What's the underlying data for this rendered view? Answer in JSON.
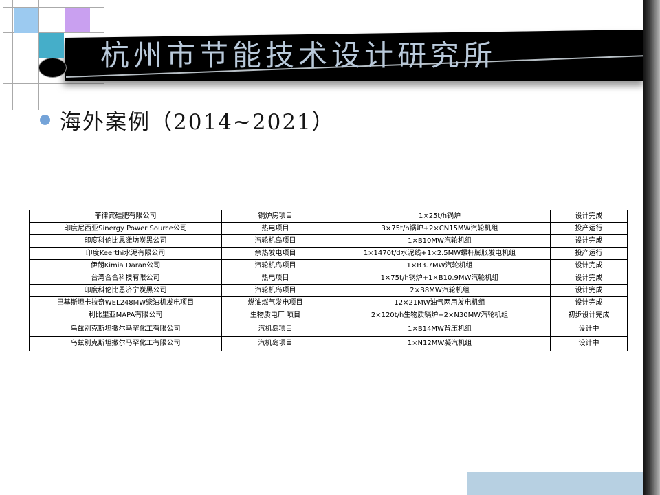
{
  "slide": {
    "title": "杭州市节能技术设计研究所",
    "bullet": "海外案例（2014~2021）"
  },
  "table": {
    "column_keys": [
      "company",
      "project",
      "equipment",
      "status"
    ],
    "rows": [
      {
        "company": "菲律宾硅肥有限公司",
        "project": "锅炉房项目",
        "equipment": "1×25t/h锅炉",
        "status": "设计完成"
      },
      {
        "company": "印度尼西亚Sinergy Power Source公司",
        "project": "热电项目",
        "equipment": "3×75t/h锅炉+2×CN15MW汽轮机组",
        "status": "投产运行"
      },
      {
        "company": "印度科伦比恩潍坊炭黑公司",
        "project": "汽轮机岛项目",
        "equipment": "1×B10MW汽轮机组",
        "status": "设计完成"
      },
      {
        "company": "印度Keerthi水泥有限公司",
        "project": "余热发电项目",
        "equipment": "1×1470t/d水泥线+1×2.5MW螺杆膨胀发电机组",
        "status": "投产运行"
      },
      {
        "company": "伊朗Kimia Daran公司",
        "project": "汽轮机岛项目",
        "equipment": "1×B3.7MW汽轮机组",
        "status": "设计完成"
      },
      {
        "company": "台湾合合科技有限公司",
        "project": "热电项目",
        "equipment": "1×75t/h锅炉+1×B10.9MW汽轮机组",
        "status": "设计完成"
      },
      {
        "company": "印度科伦比恩济宁炭黑公司",
        "project": "汽轮机岛项目",
        "equipment": "2×B8MW汽轮机组",
        "status": "设计完成"
      },
      {
        "company": "巴基斯坦卡拉奇WEL248MW柴油机发电项目",
        "project": "燃油燃气发电项目",
        "equipment": "12×21MW油气两用发电机组",
        "status": "设计完成"
      },
      {
        "company": "利比里亚MAPA有限公司",
        "project": "生物质电厂 项目",
        "equipment": "2×120t/h生物质锅炉+2×N30MW汽轮机组",
        "status": "初步设计完成"
      },
      {
        "company": "乌兹别克斯坦撒尔马罕化工有限公司",
        "project": "汽机岛项目",
        "equipment": "1×B14MW背压机组",
        "status": "设计中"
      },
      {
        "company": "乌兹别克斯坦撒尔马罕化工有限公司",
        "project": "汽机岛项目",
        "equipment": "1×N12MW凝汽机组",
        "status": "设计中"
      }
    ]
  },
  "colors": {
    "banner_bg": "#000000",
    "title_text": "#b9c9da",
    "square_blue": "#9ccaf0",
    "square_purple": "#c9a0f0",
    "square_teal": "#45aec9",
    "bullet_dot": "#74a3d8",
    "footer_bar": "#b7d0e2",
    "grid_line": "#aaaaaa",
    "table_border": "#000000"
  }
}
